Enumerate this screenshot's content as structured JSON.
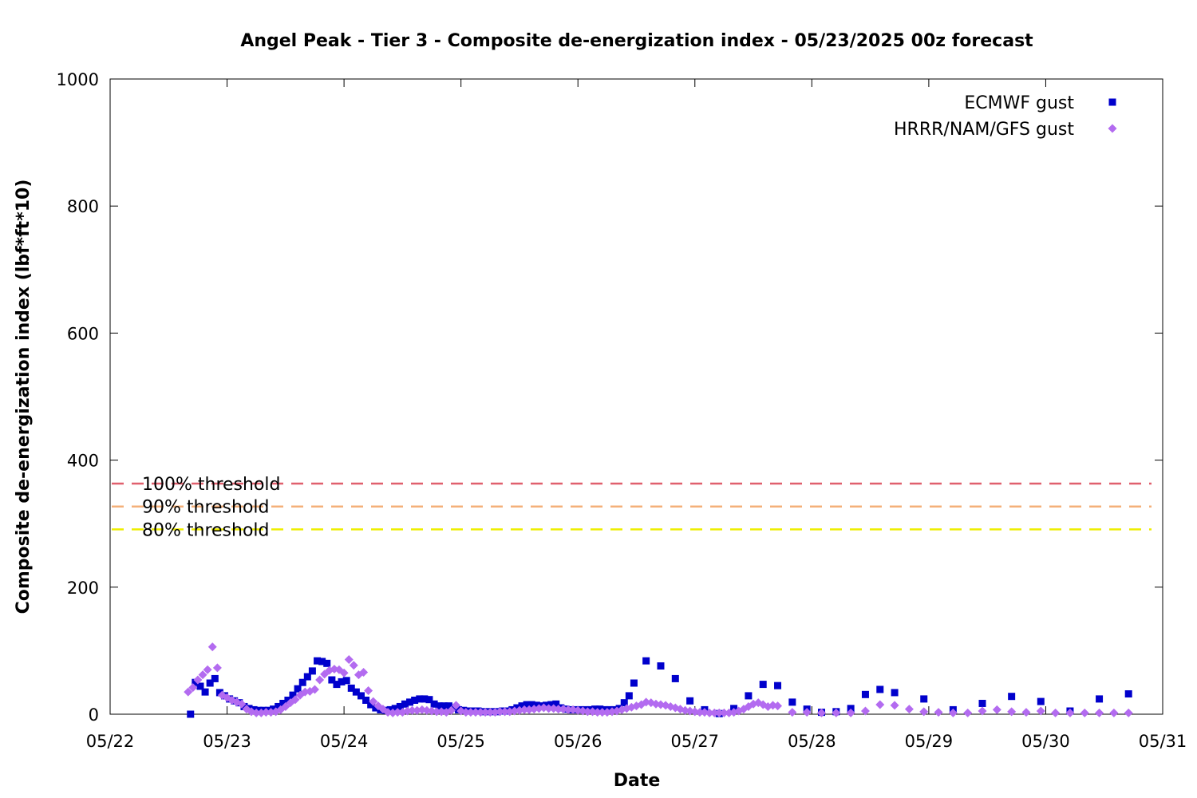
{
  "chart_data": {
    "type": "scatter",
    "title": "Angel Peak - Tier 3 - Composite de-energization index - 05/23/2025 00z forecast",
    "xlabel": "Date",
    "ylabel": "Composite de-energization index (lbf*ft*10)",
    "x_is_days": true,
    "xlim": [
      0,
      9
    ],
    "ylim": [
      0,
      1000
    ],
    "x_ticks": [
      {
        "value": 0,
        "label": "05/22"
      },
      {
        "value": 1,
        "label": "05/23"
      },
      {
        "value": 2,
        "label": "05/24"
      },
      {
        "value": 3,
        "label": "05/25"
      },
      {
        "value": 4,
        "label": "05/26"
      },
      {
        "value": 5,
        "label": "05/27"
      },
      {
        "value": 6,
        "label": "05/28"
      },
      {
        "value": 7,
        "label": "05/29"
      },
      {
        "value": 8,
        "label": "05/30"
      },
      {
        "value": 9,
        "label": "05/31"
      }
    ],
    "y_ticks": [
      {
        "value": 0,
        "label": "0"
      },
      {
        "value": 200,
        "label": "200"
      },
      {
        "value": 400,
        "label": "400"
      },
      {
        "value": 600,
        "label": "600"
      },
      {
        "value": 800,
        "label": "800"
      },
      {
        "value": 1000,
        "label": "1000"
      }
    ],
    "grid": false,
    "legend_position": "top-right",
    "thresholds": [
      {
        "label": "100% threshold",
        "value": 363,
        "color": "#e0606e"
      },
      {
        "label": "90% threshold",
        "value": 327,
        "color": "#f4b07a"
      },
      {
        "label": "80% threshold",
        "value": 291,
        "color": "#eeee00"
      }
    ],
    "series": [
      {
        "name": "ECMWF gust",
        "marker": "square",
        "color": "#0000cc",
        "points": [
          [
            0.6875,
            0
          ],
          [
            0.729,
            50
          ],
          [
            0.771,
            44
          ],
          [
            0.8125,
            35
          ],
          [
            0.854,
            49
          ],
          [
            0.896,
            56
          ],
          [
            0.9375,
            34
          ],
          [
            0.979,
            29
          ],
          [
            1.021,
            24
          ],
          [
            1.0625,
            21
          ],
          [
            1.104,
            18
          ],
          [
            1.146,
            12
          ],
          [
            1.1875,
            9
          ],
          [
            1.229,
            7
          ],
          [
            1.271,
            6
          ],
          [
            1.3125,
            6
          ],
          [
            1.354,
            6
          ],
          [
            1.396,
            8
          ],
          [
            1.4375,
            12
          ],
          [
            1.479,
            17
          ],
          [
            1.521,
            22
          ],
          [
            1.5625,
            30
          ],
          [
            1.604,
            40
          ],
          [
            1.646,
            50
          ],
          [
            1.6875,
            59
          ],
          [
            1.729,
            68
          ],
          [
            1.771,
            84
          ],
          [
            1.8125,
            83
          ],
          [
            1.854,
            80
          ],
          [
            1.896,
            54
          ],
          [
            1.9375,
            47
          ],
          [
            1.979,
            51
          ],
          [
            2.021,
            53
          ],
          [
            2.0625,
            41
          ],
          [
            2.104,
            35
          ],
          [
            2.146,
            29
          ],
          [
            2.1875,
            22
          ],
          [
            2.229,
            15
          ],
          [
            2.271,
            10
          ],
          [
            2.3125,
            7
          ],
          [
            2.354,
            6
          ],
          [
            2.396,
            7
          ],
          [
            2.4375,
            9
          ],
          [
            2.479,
            12
          ],
          [
            2.521,
            16
          ],
          [
            2.5625,
            19
          ],
          [
            2.604,
            22
          ],
          [
            2.646,
            24
          ],
          [
            2.6875,
            24
          ],
          [
            2.729,
            23
          ],
          [
            2.771,
            16
          ],
          [
            2.8125,
            13
          ],
          [
            2.854,
            13
          ],
          [
            2.896,
            13
          ],
          [
            2.9375,
            10
          ],
          [
            2.979,
            7
          ],
          [
            3.021,
            6
          ],
          [
            3.0625,
            5
          ],
          [
            3.104,
            5
          ],
          [
            3.146,
            5
          ],
          [
            3.1875,
            4
          ],
          [
            3.229,
            4
          ],
          [
            3.271,
            4
          ],
          [
            3.3125,
            4
          ],
          [
            3.354,
            5
          ],
          [
            3.396,
            5
          ],
          [
            3.4375,
            7
          ],
          [
            3.479,
            10
          ],
          [
            3.521,
            13
          ],
          [
            3.5625,
            15
          ],
          [
            3.604,
            15
          ],
          [
            3.646,
            14
          ],
          [
            3.6875,
            13
          ],
          [
            3.729,
            14
          ],
          [
            3.771,
            15
          ],
          [
            3.8125,
            16
          ],
          [
            3.854,
            10
          ],
          [
            3.896,
            8
          ],
          [
            3.9375,
            7
          ],
          [
            3.979,
            7
          ],
          [
            4.021,
            7
          ],
          [
            4.0625,
            7
          ],
          [
            4.104,
            7
          ],
          [
            4.146,
            8
          ],
          [
            4.1875,
            8
          ],
          [
            4.229,
            7
          ],
          [
            4.271,
            7
          ],
          [
            4.3125,
            7
          ],
          [
            4.354,
            9
          ],
          [
            4.396,
            18
          ],
          [
            4.4375,
            29
          ],
          [
            4.479,
            49
          ],
          [
            4.583,
            84
          ],
          [
            4.708,
            76
          ],
          [
            4.833,
            56
          ],
          [
            4.958,
            21
          ],
          [
            5.083,
            7
          ],
          [
            5.208,
            1
          ],
          [
            5.333,
            9
          ],
          [
            5.458,
            29
          ],
          [
            5.583,
            47
          ],
          [
            5.708,
            45
          ],
          [
            5.833,
            19
          ],
          [
            5.958,
            8
          ],
          [
            6.083,
            3
          ],
          [
            6.208,
            4
          ],
          [
            6.333,
            9
          ],
          [
            6.458,
            31
          ],
          [
            6.583,
            39
          ],
          [
            6.708,
            34
          ],
          [
            6.958,
            24
          ],
          [
            7.208,
            7
          ],
          [
            7.458,
            17
          ],
          [
            7.708,
            28
          ],
          [
            7.958,
            20
          ],
          [
            8.208,
            5
          ],
          [
            8.458,
            24
          ],
          [
            8.708,
            32
          ]
        ]
      },
      {
        "name": "HRRR/NAM/GFS gust",
        "marker": "diamond",
        "color": "#b36bf0",
        "points": [
          [
            0.667,
            35
          ],
          [
            0.708,
            42
          ],
          [
            0.75,
            54
          ],
          [
            0.792,
            62
          ],
          [
            0.833,
            70
          ],
          [
            0.875,
            106
          ],
          [
            0.917,
            73
          ],
          [
            0.958,
            30
          ],
          [
            1.0,
            26
          ],
          [
            1.042,
            22
          ],
          [
            1.083,
            19
          ],
          [
            1.125,
            16
          ],
          [
            1.167,
            8
          ],
          [
            1.208,
            4
          ],
          [
            1.25,
            2
          ],
          [
            1.292,
            2
          ],
          [
            1.333,
            3
          ],
          [
            1.375,
            3
          ],
          [
            1.417,
            4
          ],
          [
            1.458,
            7
          ],
          [
            1.5,
            12
          ],
          [
            1.542,
            18
          ],
          [
            1.583,
            23
          ],
          [
            1.625,
            30
          ],
          [
            1.667,
            35
          ],
          [
            1.708,
            36
          ],
          [
            1.75,
            39
          ],
          [
            1.792,
            54
          ],
          [
            1.833,
            63
          ],
          [
            1.875,
            69
          ],
          [
            1.917,
            71
          ],
          [
            1.958,
            70
          ],
          [
            2.0,
            65
          ],
          [
            2.042,
            86
          ],
          [
            2.083,
            77
          ],
          [
            2.125,
            62
          ],
          [
            2.167,
            66
          ],
          [
            2.208,
            37
          ],
          [
            2.25,
            20
          ],
          [
            2.292,
            13
          ],
          [
            2.333,
            8
          ],
          [
            2.375,
            3
          ],
          [
            2.417,
            2
          ],
          [
            2.458,
            3
          ],
          [
            2.5,
            3
          ],
          [
            2.542,
            5
          ],
          [
            2.583,
            6
          ],
          [
            2.625,
            6
          ],
          [
            2.667,
            7
          ],
          [
            2.708,
            6
          ],
          [
            2.75,
            5
          ],
          [
            2.792,
            4
          ],
          [
            2.833,
            4
          ],
          [
            2.875,
            3
          ],
          [
            2.917,
            6
          ],
          [
            2.958,
            14
          ],
          [
            3.0,
            5
          ],
          [
            3.042,
            3
          ],
          [
            3.083,
            3
          ],
          [
            3.125,
            3
          ],
          [
            3.167,
            3
          ],
          [
            3.208,
            3
          ],
          [
            3.25,
            3
          ],
          [
            3.292,
            3
          ],
          [
            3.333,
            4
          ],
          [
            3.375,
            4
          ],
          [
            3.417,
            4
          ],
          [
            3.458,
            5
          ],
          [
            3.5,
            6
          ],
          [
            3.542,
            7
          ],
          [
            3.583,
            7
          ],
          [
            3.625,
            8
          ],
          [
            3.667,
            9
          ],
          [
            3.708,
            10
          ],
          [
            3.75,
            9
          ],
          [
            3.792,
            9
          ],
          [
            3.833,
            8
          ],
          [
            3.875,
            8
          ],
          [
            3.917,
            7
          ],
          [
            3.958,
            7
          ],
          [
            4.0,
            6
          ],
          [
            4.042,
            5
          ],
          [
            4.083,
            4
          ],
          [
            4.125,
            4
          ],
          [
            4.167,
            3
          ],
          [
            4.208,
            3
          ],
          [
            4.25,
            3
          ],
          [
            4.292,
            4
          ],
          [
            4.333,
            5
          ],
          [
            4.375,
            7
          ],
          [
            4.417,
            9
          ],
          [
            4.458,
            11
          ],
          [
            4.5,
            13
          ],
          [
            4.542,
            15
          ],
          [
            4.583,
            19
          ],
          [
            4.625,
            18
          ],
          [
            4.667,
            16
          ],
          [
            4.708,
            15
          ],
          [
            4.75,
            14
          ],
          [
            4.792,
            12
          ],
          [
            4.833,
            10
          ],
          [
            4.875,
            8
          ],
          [
            4.917,
            6
          ],
          [
            4.958,
            5
          ],
          [
            5.0,
            4
          ],
          [
            5.042,
            3
          ],
          [
            5.083,
            3
          ],
          [
            5.125,
            2
          ],
          [
            5.167,
            2
          ],
          [
            5.208,
            2
          ],
          [
            5.25,
            2
          ],
          [
            5.292,
            2
          ],
          [
            5.333,
            3
          ],
          [
            5.375,
            5
          ],
          [
            5.417,
            8
          ],
          [
            5.458,
            12
          ],
          [
            5.5,
            16
          ],
          [
            5.542,
            18
          ],
          [
            5.583,
            15
          ],
          [
            5.625,
            12
          ],
          [
            5.667,
            14
          ],
          [
            5.708,
            13
          ],
          [
            5.833,
            3
          ],
          [
            5.958,
            3
          ],
          [
            6.083,
            2
          ],
          [
            6.208,
            2
          ],
          [
            6.333,
            2
          ],
          [
            6.458,
            5
          ],
          [
            6.583,
            15
          ],
          [
            6.708,
            14
          ],
          [
            6.833,
            8
          ],
          [
            6.958,
            4
          ],
          [
            7.083,
            3
          ],
          [
            7.208,
            2
          ],
          [
            7.333,
            2
          ],
          [
            7.458,
            5
          ],
          [
            7.583,
            7
          ],
          [
            7.708,
            4
          ],
          [
            7.833,
            3
          ],
          [
            7.958,
            5
          ],
          [
            8.083,
            2
          ],
          [
            8.208,
            2
          ],
          [
            8.333,
            2
          ],
          [
            8.458,
            2
          ],
          [
            8.583,
            2
          ],
          [
            8.708,
            2
          ]
        ]
      }
    ]
  }
}
